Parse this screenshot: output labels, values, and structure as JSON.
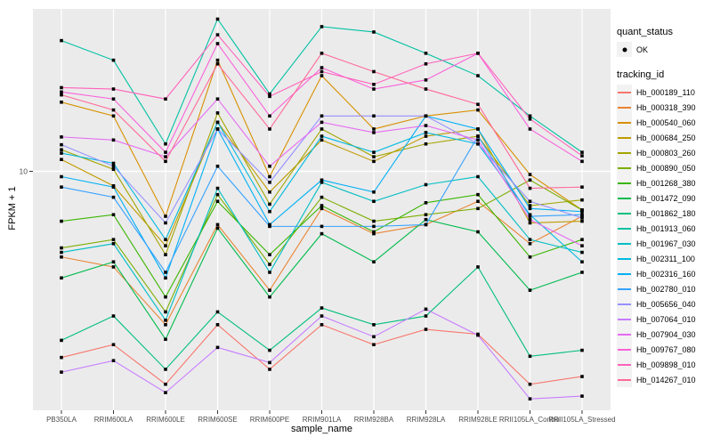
{
  "chart": {
    "x_axis_title": "sample_name",
    "y_axis_title": "FPKM + 1",
    "y_tick_label": "10"
  },
  "legend": {
    "quant_status_title": "quant_status",
    "quant_status_items": [
      {
        "label": "OK"
      }
    ],
    "tracking_id_title": "tracking_id"
  },
  "colors": {
    "panel_bg": "#EBEBEB",
    "grid": "#FFFFFF",
    "tick_text": "#4D4D4D",
    "axis_tick": "#333333",
    "marker": "#000000",
    "legend_key_bg": "#F2F2F2"
  },
  "chart_data": {
    "type": "line",
    "title": "",
    "xlabel": "sample_name",
    "ylabel": "FPKM + 1",
    "y_scale": "log10",
    "y_major_tick": 10,
    "grid": "on",
    "legend_position": "right",
    "x_categories": [
      "PB350LA",
      "RRIM600LA",
      "RRIM600LE",
      "RRIM600SE",
      "RRIM600PE",
      "RRIM901LA",
      "RRIM928BA",
      "RRIM928LA",
      "RRIM928LE",
      "RRII105LA_Control",
      "RRII105LA_Stressed"
    ],
    "series": [
      {
        "name": "Hb_000189_110",
        "color": "#F8766D",
        "values": [
          1.68,
          1.9,
          1.3,
          2.3,
          1.5,
          2.3,
          1.9,
          2.2,
          2.1,
          1.3,
          1.4
        ]
      },
      {
        "name": "Hb_000318_390",
        "color": "#EA8331",
        "values": [
          4.4,
          4.0,
          2.3,
          6.0,
          3.2,
          7.0,
          5.5,
          6.0,
          7.5,
          5.0,
          6.5
        ]
      },
      {
        "name": "Hb_000540_060",
        "color": "#D89000",
        "values": [
          19.4,
          17,
          6.5,
          29,
          9.5,
          25,
          15,
          17,
          18,
          9.7,
          6.9
        ]
      },
      {
        "name": "Hb_000684_250",
        "color": "#C09B00",
        "values": [
          11.2,
          8.7,
          4.9,
          16,
          8.2,
          13.5,
          11,
          14,
          15,
          6.1,
          6.2
        ]
      },
      {
        "name": "Hb_000803_260",
        "color": "#A3A500",
        "values": [
          12.3,
          10.2,
          4.5,
          17.5,
          7.3,
          15,
          11.5,
          13,
          14,
          7.2,
          7.6
        ]
      },
      {
        "name": "Hb_000890_050",
        "color": "#7CAE00",
        "values": [
          4.8,
          5.2,
          2.6,
          8.0,
          4.1,
          7.8,
          6.2,
          6.6,
          7.0,
          9.2,
          6.9
        ]
      },
      {
        "name": "Hb_001268_380",
        "color": "#39B600",
        "values": [
          6.2,
          6.6,
          3.0,
          7.5,
          4.5,
          7.2,
          5.6,
          7.4,
          8.0,
          4.4,
          5.2
        ]
      },
      {
        "name": "Hb_001472_090",
        "color": "#00BB4E",
        "values": [
          3.6,
          4.2,
          2.0,
          5.8,
          3.0,
          5.5,
          4.2,
          6.3,
          5.6,
          3.2,
          3.8
        ]
      },
      {
        "name": "Hb_001862_180",
        "color": "#00BF7D",
        "values": [
          1.98,
          2.5,
          1.5,
          2.6,
          1.8,
          2.7,
          2.3,
          2.5,
          4.0,
          1.7,
          1.8
        ]
      },
      {
        "name": "Hb_001913_060",
        "color": "#00C1A3",
        "values": [
          35,
          29,
          13,
          43,
          21,
          40,
          38,
          31,
          25,
          17,
          12
        ]
      },
      {
        "name": "Hb_001967_030",
        "color": "#00BFC4",
        "values": [
          4.6,
          5.0,
          2.4,
          8.5,
          3.8,
          9.0,
          7.5,
          8.8,
          9.5,
          5.2,
          4.6
        ]
      },
      {
        "name": "Hb_002311_100",
        "color": "#00BAE0",
        "values": [
          11.9,
          10.8,
          5.2,
          16,
          6.8,
          14,
          12,
          14.5,
          13,
          6.6,
          4.2
        ]
      },
      {
        "name": "Hb_002316_160",
        "color": "#00B0F6",
        "values": [
          9.5,
          8.6,
          3.6,
          15,
          6.0,
          9.2,
          8.2,
          17,
          15,
          7.0,
          6.8
        ]
      },
      {
        "name": "Hb_002780_010",
        "color": "#35A2FF",
        "values": [
          8.6,
          7.8,
          3.8,
          10.5,
          5.9,
          5.9,
          5.9,
          6.0,
          14,
          6.5,
          6.6
        ]
      },
      {
        "name": "Hb_005656_040",
        "color": "#9590FF",
        "values": [
          12.9,
          10.5,
          6.1,
          15,
          9.0,
          17,
          17,
          17,
          13,
          7.5,
          6.4
        ]
      },
      {
        "name": "Hb_007064_010",
        "color": "#C77CFF",
        "values": [
          1.46,
          1.63,
          1.2,
          1.85,
          1.6,
          2.5,
          2.05,
          2.67,
          2.08,
          1.13,
          1.16
        ]
      },
      {
        "name": "Hb_007904_030",
        "color": "#E76BF3",
        "values": [
          13.9,
          13.5,
          11.5,
          20,
          10.5,
          16,
          14.5,
          15.5,
          13.5,
          6.3,
          4.9
        ]
      },
      {
        "name": "Hb_009767_080",
        "color": "#FA62DB",
        "values": [
          21.4,
          20,
          12,
          34,
          17,
          27,
          22,
          24,
          31,
          15,
          11
        ]
      },
      {
        "name": "Hb_009898_010",
        "color": "#FF62BC",
        "values": [
          22.3,
          22,
          20,
          37,
          20.5,
          26,
          23,
          28,
          31,
          16.5,
          11.6
        ]
      },
      {
        "name": "Hb_014267_010",
        "color": "#FF6A98",
        "values": [
          20.8,
          18,
          11,
          28,
          15,
          31,
          26,
          22,
          19,
          8.5,
          8.6
        ]
      }
    ]
  }
}
